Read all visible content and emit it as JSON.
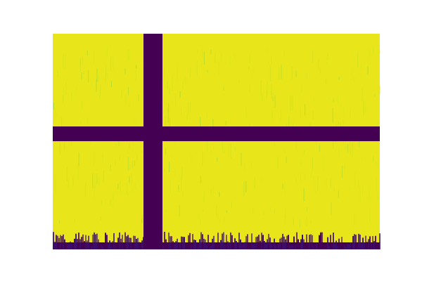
{
  "chart_data": {
    "type": "heatmap",
    "title": "",
    "xlabel": "",
    "ylabel": "",
    "axes_visible": false,
    "colormap": "viridis",
    "color_range": [
      0.0,
      1.0
    ],
    "grid": false,
    "legend": "none",
    "dominant_value": 0.9,
    "masked_value": 0.0,
    "masked_bands": [
      {
        "orientation": "vertical",
        "name": "vertical-masked-band"
      },
      {
        "orientation": "horizontal",
        "name": "horizontal-masked-band"
      }
    ],
    "bottom_edge_falloff": true
  },
  "colors": {
    "high": "#e8e51a",
    "high_alt": "#d2e21b",
    "mid": "#a5db36",
    "low": "#440154",
    "low_alt": "#3b0f70",
    "background": "#ffffff"
  }
}
